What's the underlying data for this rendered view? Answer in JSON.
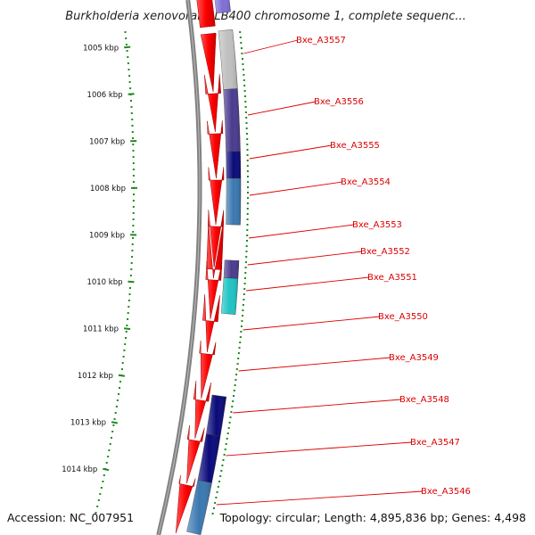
{
  "header": {
    "title": "Burkholderia xenovorans LB400 chromosome 1, complete sequenc..."
  },
  "footer": {
    "accession": "Accession: NC_007951",
    "summary": "Topology: circular; Length: 4,895,836 bp; Genes: 4,498"
  },
  "ruler": {
    "ticks": [
      "1005 kbp",
      "1006 kbp",
      "1007 kbp",
      "1008 kbp",
      "1009 kbp",
      "1010 kbp",
      "1011 kbp",
      "1012 kbp",
      "1013 kbp",
      "1014 kbp"
    ]
  },
  "genes": [
    {
      "label": "Bxe_A3557",
      "color": "#c0c0c0"
    },
    {
      "label": "Bxe_A3556",
      "color": "#4b3b8f"
    },
    {
      "label": "Bxe_A3555",
      "color": "#0a0a7a"
    },
    {
      "label": "Bxe_A3554",
      "color": "#3b78b0"
    },
    {
      "label": "Bxe_A3553",
      "color": "#ff0000"
    },
    {
      "label": "Bxe_A3552",
      "color": "#4b3b8f"
    },
    {
      "label": "Bxe_A3551",
      "color": "#1fc4c4"
    },
    {
      "label": "Bxe_A3550",
      "color": "#ff0000"
    },
    {
      "label": "Bxe_A3549",
      "color": "#ff0000"
    },
    {
      "label": "Bxe_A3548",
      "color": "#0a0a7a"
    },
    {
      "label": "Bxe_A3547",
      "color": "#0a0a7a"
    },
    {
      "label": "Bxe_A3546",
      "color": "#3b78b0"
    }
  ],
  "colors": {
    "forward_strand": "#ff0000",
    "backbone": "#7a7a7a",
    "ruler": "#1f8a1f",
    "label": "#dd0000"
  }
}
